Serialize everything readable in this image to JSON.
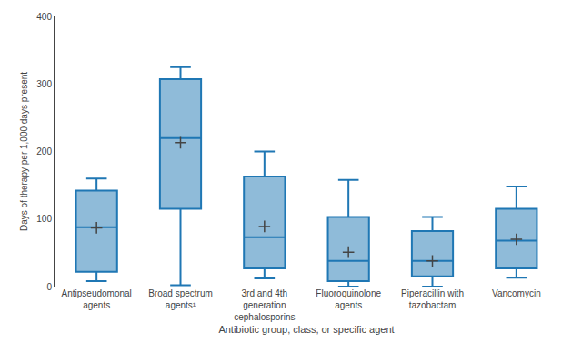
{
  "chart_data": {
    "type": "box",
    "categories": [
      "Antipseudomonal\nagents",
      "Broad spectrum\nagents¹",
      "3rd and 4th\ngeneration\ncephalosporins",
      "Fluoroquinolone\nagents",
      "Piperacillin with\ntazobactam",
      "Vancomycin"
    ],
    "whislo": [
      8,
      2,
      12,
      0,
      0,
      13
    ],
    "q1": [
      22,
      115,
      27,
      8,
      15,
      27
    ],
    "median": [
      88,
      220,
      73,
      38,
      38,
      68
    ],
    "q3": [
      142,
      307,
      163,
      103,
      82,
      115
    ],
    "whishi": [
      160,
      325,
      200,
      158,
      103,
      148
    ],
    "mean": [
      87,
      213,
      89,
      51,
      38,
      70
    ],
    "marker": "cross",
    "xlabel": "Antibiotic group, class, or specific agent",
    "ylabel": "Days of therapy per 1,000 days present",
    "ylim": [
      0,
      400
    ],
    "yticks": [
      0,
      100,
      200,
      300,
      400
    ],
    "grid": false
  }
}
